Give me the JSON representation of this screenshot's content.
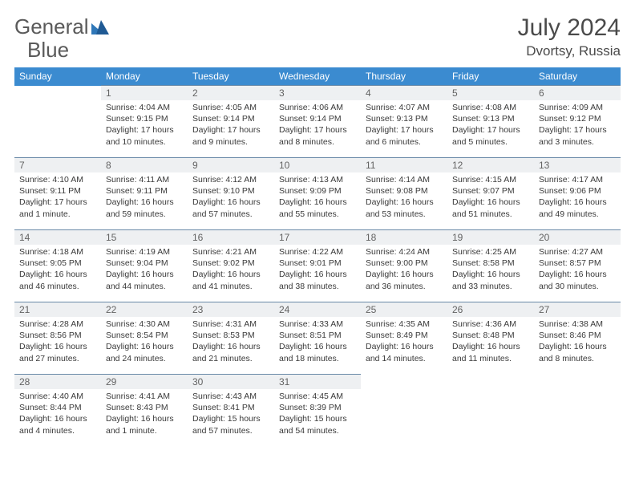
{
  "brand": {
    "part1": "General",
    "part2": "Blue"
  },
  "title": "July 2024",
  "location": "Dvortsy, Russia",
  "colors": {
    "header_bg": "#3b8bd0",
    "header_fg": "#ffffff",
    "daynum_bg": "#eef0f2",
    "cell_border": "#6a8aa8",
    "text": "#3a3a3a",
    "logo_blue": "#2f77b8"
  },
  "weekdays": [
    "Sunday",
    "Monday",
    "Tuesday",
    "Wednesday",
    "Thursday",
    "Friday",
    "Saturday"
  ],
  "weeks": [
    [
      {
        "n": "",
        "sr": "",
        "ss": "",
        "dl": ""
      },
      {
        "n": "1",
        "sr": "4:04 AM",
        "ss": "9:15 PM",
        "dl": "17 hours and 10 minutes."
      },
      {
        "n": "2",
        "sr": "4:05 AM",
        "ss": "9:14 PM",
        "dl": "17 hours and 9 minutes."
      },
      {
        "n": "3",
        "sr": "4:06 AM",
        "ss": "9:14 PM",
        "dl": "17 hours and 8 minutes."
      },
      {
        "n": "4",
        "sr": "4:07 AM",
        "ss": "9:13 PM",
        "dl": "17 hours and 6 minutes."
      },
      {
        "n": "5",
        "sr": "4:08 AM",
        "ss": "9:13 PM",
        "dl": "17 hours and 5 minutes."
      },
      {
        "n": "6",
        "sr": "4:09 AM",
        "ss": "9:12 PM",
        "dl": "17 hours and 3 minutes."
      }
    ],
    [
      {
        "n": "7",
        "sr": "4:10 AM",
        "ss": "9:11 PM",
        "dl": "17 hours and 1 minute."
      },
      {
        "n": "8",
        "sr": "4:11 AM",
        "ss": "9:11 PM",
        "dl": "16 hours and 59 minutes."
      },
      {
        "n": "9",
        "sr": "4:12 AM",
        "ss": "9:10 PM",
        "dl": "16 hours and 57 minutes."
      },
      {
        "n": "10",
        "sr": "4:13 AM",
        "ss": "9:09 PM",
        "dl": "16 hours and 55 minutes."
      },
      {
        "n": "11",
        "sr": "4:14 AM",
        "ss": "9:08 PM",
        "dl": "16 hours and 53 minutes."
      },
      {
        "n": "12",
        "sr": "4:15 AM",
        "ss": "9:07 PM",
        "dl": "16 hours and 51 minutes."
      },
      {
        "n": "13",
        "sr": "4:17 AM",
        "ss": "9:06 PM",
        "dl": "16 hours and 49 minutes."
      }
    ],
    [
      {
        "n": "14",
        "sr": "4:18 AM",
        "ss": "9:05 PM",
        "dl": "16 hours and 46 minutes."
      },
      {
        "n": "15",
        "sr": "4:19 AM",
        "ss": "9:04 PM",
        "dl": "16 hours and 44 minutes."
      },
      {
        "n": "16",
        "sr": "4:21 AM",
        "ss": "9:02 PM",
        "dl": "16 hours and 41 minutes."
      },
      {
        "n": "17",
        "sr": "4:22 AM",
        "ss": "9:01 PM",
        "dl": "16 hours and 38 minutes."
      },
      {
        "n": "18",
        "sr": "4:24 AM",
        "ss": "9:00 PM",
        "dl": "16 hours and 36 minutes."
      },
      {
        "n": "19",
        "sr": "4:25 AM",
        "ss": "8:58 PM",
        "dl": "16 hours and 33 minutes."
      },
      {
        "n": "20",
        "sr": "4:27 AM",
        "ss": "8:57 PM",
        "dl": "16 hours and 30 minutes."
      }
    ],
    [
      {
        "n": "21",
        "sr": "4:28 AM",
        "ss": "8:56 PM",
        "dl": "16 hours and 27 minutes."
      },
      {
        "n": "22",
        "sr": "4:30 AM",
        "ss": "8:54 PM",
        "dl": "16 hours and 24 minutes."
      },
      {
        "n": "23",
        "sr": "4:31 AM",
        "ss": "8:53 PM",
        "dl": "16 hours and 21 minutes."
      },
      {
        "n": "24",
        "sr": "4:33 AM",
        "ss": "8:51 PM",
        "dl": "16 hours and 18 minutes."
      },
      {
        "n": "25",
        "sr": "4:35 AM",
        "ss": "8:49 PM",
        "dl": "16 hours and 14 minutes."
      },
      {
        "n": "26",
        "sr": "4:36 AM",
        "ss": "8:48 PM",
        "dl": "16 hours and 11 minutes."
      },
      {
        "n": "27",
        "sr": "4:38 AM",
        "ss": "8:46 PM",
        "dl": "16 hours and 8 minutes."
      }
    ],
    [
      {
        "n": "28",
        "sr": "4:40 AM",
        "ss": "8:44 PM",
        "dl": "16 hours and 4 minutes."
      },
      {
        "n": "29",
        "sr": "4:41 AM",
        "ss": "8:43 PM",
        "dl": "16 hours and 1 minute."
      },
      {
        "n": "30",
        "sr": "4:43 AM",
        "ss": "8:41 PM",
        "dl": "15 hours and 57 minutes."
      },
      {
        "n": "31",
        "sr": "4:45 AM",
        "ss": "8:39 PM",
        "dl": "15 hours and 54 minutes."
      },
      {
        "n": "",
        "sr": "",
        "ss": "",
        "dl": ""
      },
      {
        "n": "",
        "sr": "",
        "ss": "",
        "dl": ""
      },
      {
        "n": "",
        "sr": "",
        "ss": "",
        "dl": ""
      }
    ]
  ],
  "labels": {
    "sunrise": "Sunrise:",
    "sunset": "Sunset:",
    "daylight": "Daylight:"
  }
}
